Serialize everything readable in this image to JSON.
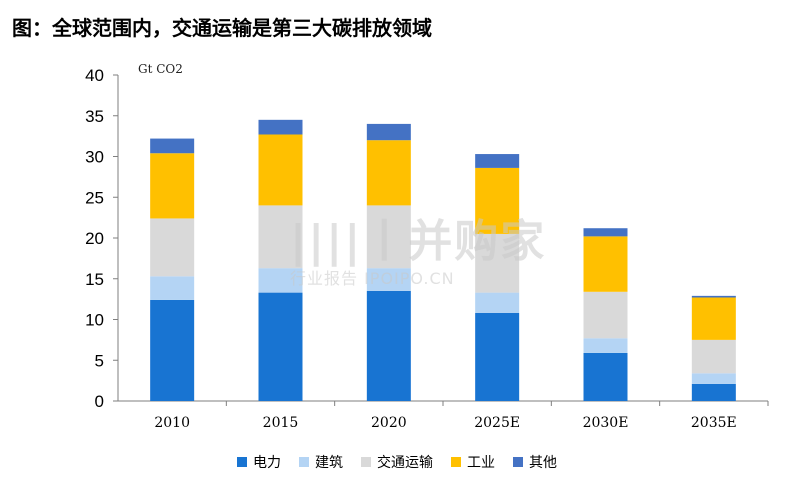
{
  "title": "图：全球范围内，交通运输是第三大碳排放领域",
  "watermark": {
    "main": "||||丨并购家",
    "sub": "行业报告 IPOIPO.CN"
  },
  "chart_data": {
    "type": "bar",
    "stacked": true,
    "ylabel": "Gt CO2",
    "ylim": [
      0,
      40
    ],
    "yticks": [
      0,
      5,
      10,
      15,
      20,
      25,
      30,
      35,
      40
    ],
    "categories": [
      "2010",
      "2015",
      "2020",
      "2025E",
      "2030E",
      "2035E"
    ],
    "series": [
      {
        "name": "电力",
        "color": "#1874d2",
        "values": [
          12.4,
          13.3,
          13.5,
          10.8,
          5.9,
          2.1
        ]
      },
      {
        "name": "建筑",
        "color": "#b4d4f4",
        "values": [
          2.9,
          3.0,
          2.8,
          2.5,
          1.8,
          1.3
        ]
      },
      {
        "name": "交通运输",
        "color": "#d9d9d9",
        "values": [
          7.1,
          7.7,
          7.7,
          7.2,
          5.7,
          4.1
        ]
      },
      {
        "name": "工业",
        "color": "#ffc000",
        "values": [
          8.0,
          8.7,
          8.0,
          8.1,
          6.8,
          5.2
        ]
      },
      {
        "name": "其他",
        "color": "#4472c4",
        "values": [
          1.8,
          1.8,
          2.0,
          1.7,
          1.0,
          0.2
        ]
      }
    ]
  }
}
